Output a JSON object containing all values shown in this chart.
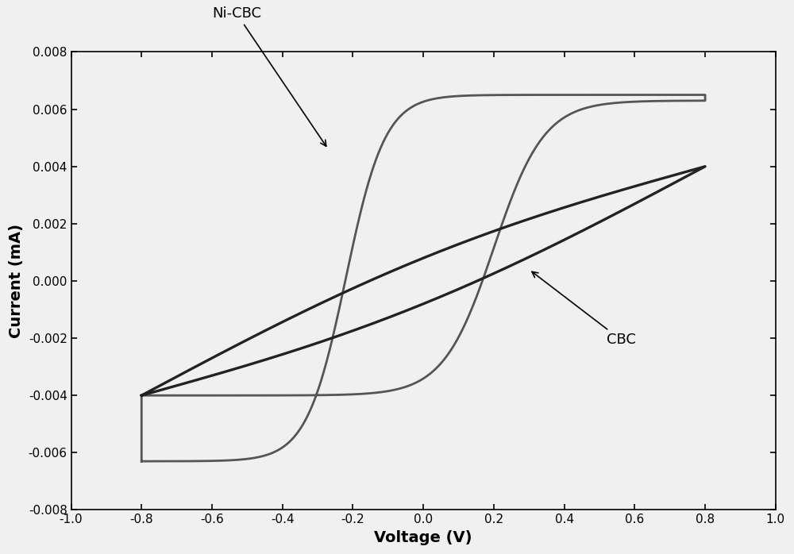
{
  "title": "",
  "xlabel": "Voltage (V)",
  "ylabel": "Current (mA)",
  "xlim": [
    -1.0,
    1.0
  ],
  "ylim": [
    -0.008,
    0.008
  ],
  "xticks": [
    -1.0,
    -0.8,
    -0.6,
    -0.4,
    -0.2,
    0.0,
    0.2,
    0.4,
    0.6,
    0.8,
    1.0
  ],
  "yticks": [
    -0.008,
    -0.006,
    -0.004,
    -0.002,
    0.0,
    0.002,
    0.004,
    0.006,
    0.008
  ],
  "xtick_labels": [
    "-1.0",
    "-0.8",
    "-0.6",
    "-0.4",
    "-0.2",
    "0.0",
    "0.2",
    "0.4",
    "0.6",
    "0.8",
    "1.0"
  ],
  "ytick_labels": [
    "-0.008",
    "-0.006",
    "-0.004",
    "-0.002",
    "0.000",
    "0.002",
    "0.004",
    "0.006",
    "0.008"
  ],
  "cbc_color": "#222222",
  "ni_cbc_color": "#555555",
  "linewidth_cbc": 2.4,
  "linewidth_ni_cbc": 2.0,
  "label_ni_cbc": "Ni-CBC",
  "label_cbc": "CBC",
  "background_color": "#f0f0f0",
  "xlabel_fontsize": 14,
  "ylabel_fontsize": 14,
  "tick_fontsize": 11,
  "annotation_fontsize": 13
}
